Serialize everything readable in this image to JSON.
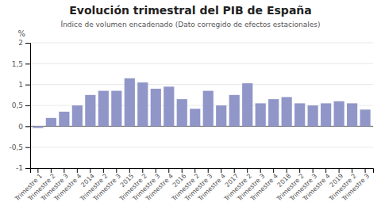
{
  "chart_data": {
    "type": "bar",
    "title": "Evolución trimestral del PIB de España",
    "subtitle": "Índice de volumen encadenado (Dato corregido de efectos estacionales)",
    "ylabel": "%",
    "categories": [
      "Trimestre 1",
      "Trimestre 2",
      "Trimestre 3",
      "Trimestre 4",
      "2014",
      "Trimestre 2",
      "Trimestre 3",
      "2015",
      "Trimestre 2",
      "Trimestre 3",
      "Trimestre 4",
      "2016",
      "Trimestre 2",
      "Trimestre 3",
      "Trimestre 4",
      "2017",
      "Trimestre 2",
      "Trimestre 3",
      "Trimestre 4",
      "2018",
      "Trimestre 2",
      "Trimestre 3",
      "Trimestre 4",
      "2019",
      "Trimestre 2",
      "Trimestre 3"
    ],
    "values": [
      -0.04,
      0.2,
      0.35,
      0.5,
      0.75,
      0.85,
      0.85,
      1.15,
      1.05,
      0.9,
      0.95,
      0.65,
      0.42,
      0.85,
      0.5,
      0.75,
      1.03,
      0.55,
      0.65,
      0.7,
      0.55,
      0.5,
      0.55,
      0.6,
      0.55,
      0.4
    ],
    "color": "#9196C8",
    "ylim": [
      -1,
      2.0
    ],
    "yticks": [
      -1,
      {
        "value": -0.5,
        "label": "-0,5"
      },
      0,
      {
        "value": 0.5,
        "label": "0,5"
      },
      1,
      {
        "value": 1.5,
        "label": "1,5"
      },
      2
    ],
    "grid": true
  }
}
